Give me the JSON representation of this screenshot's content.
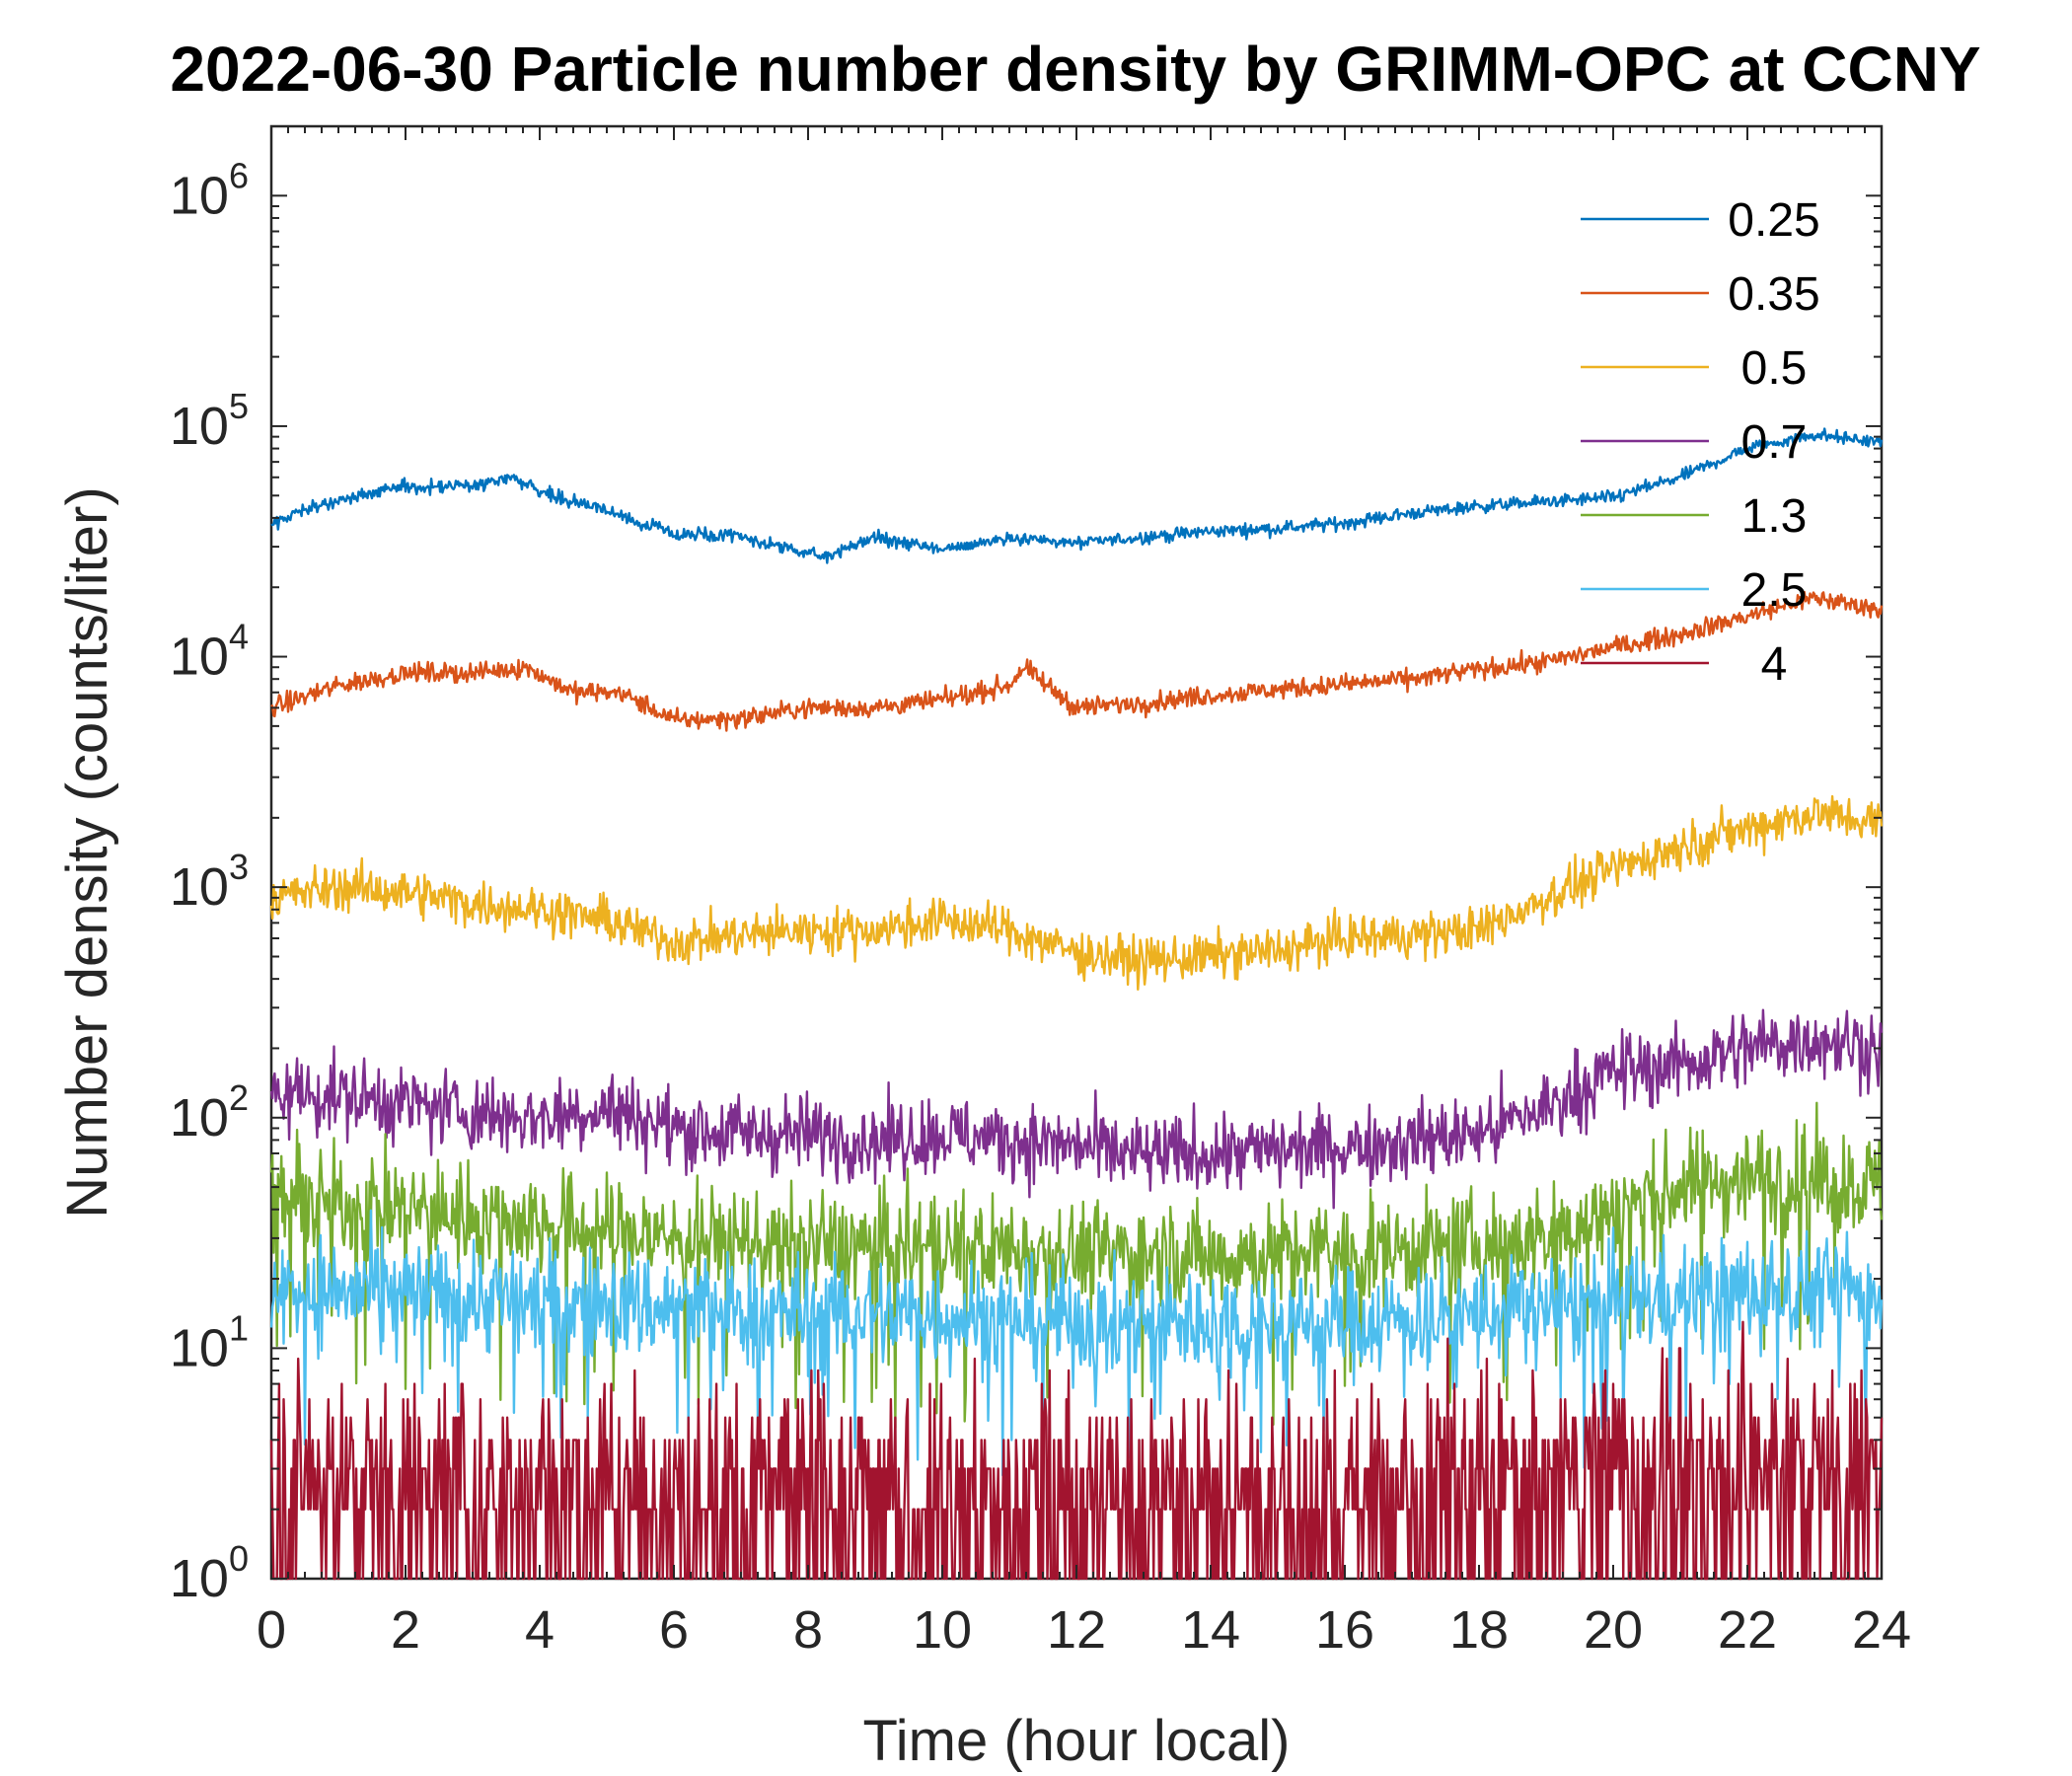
{
  "chart_data": {
    "type": "line",
    "title": "2022-06-30 Particle number density by GRIMM-OPC at CCNY",
    "xlabel": "Time (hour local)",
    "ylabel": "Number density (counts/liter)",
    "xlim": [
      0,
      24
    ],
    "ylim": [
      1,
      2000000
    ],
    "yscale": "log",
    "x_ticks": [
      0,
      2,
      4,
      6,
      8,
      10,
      12,
      14,
      16,
      18,
      20,
      22,
      24
    ],
    "x_tick_labels": [
      "0",
      "2",
      "4",
      "6",
      "8",
      "10",
      "12",
      "14",
      "16",
      "18",
      "20",
      "22",
      "24"
    ],
    "y_ticks": [
      1,
      10,
      100,
      1000,
      10000,
      100000,
      1000000
    ],
    "y_tick_labels": [
      {
        "base": "10",
        "exp": "0"
      },
      {
        "base": "10",
        "exp": "1"
      },
      {
        "base": "10",
        "exp": "2"
      },
      {
        "base": "10",
        "exp": "3"
      },
      {
        "base": "10",
        "exp": "4"
      },
      {
        "base": "10",
        "exp": "5"
      },
      {
        "base": "10",
        "exp": "6"
      }
    ],
    "grid": false,
    "legend_position": "top-right",
    "series": [
      {
        "name": "0.25",
        "color": "#0072BD",
        "noise": 0.02,
        "x": [
          0,
          1,
          2,
          3,
          3.6,
          4.2,
          5,
          6,
          7,
          8.2,
          9,
          10,
          11,
          12,
          13,
          14,
          15,
          16,
          17,
          18,
          19,
          20,
          21,
          22,
          23,
          24
        ],
        "values": [
          38000,
          48000,
          55000,
          55000,
          60000,
          50000,
          43000,
          34000,
          33000,
          27000,
          33000,
          29000,
          33000,
          31000,
          33000,
          35000,
          36000,
          38000,
          42000,
          45000,
          47000,
          49000,
          60000,
          80000,
          92000,
          85000
        ]
      },
      {
        "name": "0.35",
        "color": "#D95319",
        "noise": 0.03,
        "x": [
          0,
          1,
          2,
          3,
          3.8,
          4.5,
          5.2,
          6,
          7,
          8,
          9,
          10,
          11,
          11.2,
          12,
          13,
          14,
          15,
          16,
          17,
          18,
          19,
          20,
          21,
          22,
          23,
          24
        ],
        "values": [
          6000,
          7500,
          8500,
          8500,
          9000,
          7000,
          7000,
          5300,
          5400,
          6000,
          6000,
          6500,
          7500,
          9000,
          6000,
          6300,
          6800,
          7200,
          7600,
          8000,
          8800,
          9500,
          11000,
          12500,
          15000,
          18000,
          16000
        ]
      },
      {
        "name": "0.5",
        "color": "#EDB120",
        "noise": 0.07,
        "x": [
          0,
          1,
          2,
          3,
          4,
          5,
          6,
          7,
          8,
          9,
          10,
          11,
          12,
          13,
          14,
          15,
          16,
          17,
          18,
          19,
          20,
          21,
          22,
          23,
          24
        ],
        "values": [
          900,
          1000,
          950,
          850,
          800,
          720,
          580,
          620,
          650,
          650,
          720,
          650,
          520,
          480,
          500,
          530,
          600,
          620,
          650,
          900,
          1200,
          1500,
          1800,
          2100,
          1900
        ]
      },
      {
        "name": "0.7",
        "color": "#7E2F8E",
        "noise": 0.12,
        "x": [
          0,
          1,
          2,
          3,
          4,
          5,
          6,
          7,
          8,
          9,
          10,
          11,
          12,
          13,
          14,
          15,
          16,
          17,
          18,
          19,
          20,
          21,
          22,
          23,
          24
        ],
        "values": [
          130,
          125,
          115,
          105,
          100,
          110,
          90,
          85,
          85,
          80,
          85,
          80,
          75,
          68,
          70,
          72,
          75,
          80,
          85,
          110,
          160,
          170,
          200,
          220,
          200
        ]
      },
      {
        "name": "1.3",
        "color": "#77AC30",
        "noise": 0.16,
        "x": [
          0,
          2,
          4,
          6,
          8,
          10,
          12,
          14,
          16,
          18,
          19,
          20,
          21,
          22,
          23,
          24
        ],
        "values": [
          45,
          40,
          35,
          30,
          28,
          28,
          26,
          25,
          26,
          28,
          30,
          40,
          50,
          55,
          55,
          50
        ]
      },
      {
        "name": "2.5",
        "color": "#4DBEEE",
        "noise": 0.17,
        "x": [
          0,
          2,
          4,
          6,
          8,
          10,
          12,
          14,
          16,
          18,
          20,
          22,
          24
        ],
        "values": [
          18,
          17,
          16,
          15,
          14,
          14,
          13,
          13,
          13,
          14,
          16,
          18,
          18
        ]
      },
      {
        "name": "4",
        "color": "#A2142F",
        "noise": 0.28,
        "x": [
          0,
          4,
          8,
          12,
          16,
          20,
          24
        ],
        "values": [
          3,
          3,
          2.5,
          2.5,
          2.5,
          3.5,
          3.5
        ]
      }
    ]
  }
}
